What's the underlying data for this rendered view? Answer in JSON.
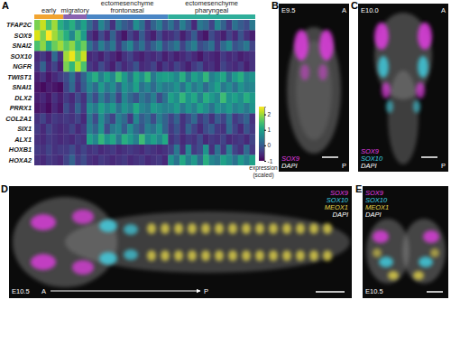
{
  "chart_data": {
    "type": "heatmap",
    "panel": "A",
    "rows": [
      "TFAP2C",
      "SOX9",
      "SNAI2",
      "SOX10",
      "NGFR",
      "TWIST1",
      "SNAI1",
      "DLX2",
      "PRRX1",
      "COL2A1",
      "SIX1",
      "ALX1",
      "HOXB1",
      "HOXA2"
    ],
    "groups": [
      {
        "name": "early",
        "color": "#f2a431"
      },
      {
        "name": "migratory",
        "color": "#8a63b0"
      },
      {
        "name": "ectomesenchyme frontonasal",
        "color": "#4a86c5"
      },
      {
        "name": "ectomesenchyme pharyngeal",
        "color": "#2fae9a"
      }
    ],
    "values": [
      [
        [
          1.8,
          2.2,
          1.5,
          2.0,
          1.2
        ],
        [
          0.8,
          1.2,
          0.5,
          1.0
        ],
        [
          0.2,
          -0.3,
          0.6,
          0.1,
          -0.5,
          0.4,
          0.0,
          -0.2,
          0.7,
          0.3,
          -0.4,
          0.1,
          0.5,
          -0.1
        ],
        [
          0.3,
          -0.2,
          0.5,
          0.0,
          -0.6,
          0.4,
          0.2,
          -0.3,
          0.6,
          0.1,
          -0.4,
          0.3,
          0.0,
          -0.2,
          0.4
        ]
      ],
      [
        [
          2.3,
          1.8,
          2.5,
          2.0,
          1.6
        ],
        [
          1.2,
          0.6,
          1.5,
          0.9
        ],
        [
          -0.4,
          -0.7,
          -0.2,
          -0.6,
          0.1,
          -0.5,
          -0.8,
          -0.3,
          -0.6,
          0.0,
          -0.5,
          -0.7,
          -0.2,
          -0.6
        ],
        [
          -0.5,
          -0.3,
          -0.7,
          -0.4,
          0.0,
          -0.6,
          -0.8,
          -0.2,
          -0.5,
          -0.7,
          -0.3,
          -0.6,
          -0.1,
          -0.5,
          -0.7
        ]
      ],
      [
        [
          1.5,
          1.9,
          1.2,
          1.7,
          2.0
        ],
        [
          1.6,
          1.9,
          1.3,
          1.7
        ],
        [
          0.3,
          -0.2,
          0.5,
          0.0,
          0.4,
          -0.4,
          0.2,
          0.6,
          -0.1,
          0.3,
          -0.3,
          0.1,
          0.5,
          -0.2
        ],
        [
          0.1,
          0.4,
          -0.3,
          0.2,
          0.5,
          -0.2,
          0.0,
          0.3,
          -0.4,
          0.2,
          0.6,
          -0.1,
          0.1,
          0.4,
          -0.3
        ]
      ],
      [
        [
          -0.6,
          -0.4,
          -0.7,
          0.2,
          -0.5
        ],
        [
          2.0,
          2.4,
          1.7,
          2.2
        ],
        [
          -0.6,
          -0.5,
          -0.7,
          -0.4,
          -0.6,
          -0.8,
          -0.5,
          -0.3,
          -0.6,
          -0.7,
          -0.5,
          -0.6,
          -0.4,
          -0.7
        ],
        [
          -0.5,
          -0.7,
          -0.6,
          -0.4,
          -0.6,
          -0.8,
          -0.5,
          -0.6,
          -0.7,
          -0.4,
          -0.6,
          -0.5,
          -0.7,
          -0.6,
          -0.5
        ]
      ],
      [
        [
          -0.5,
          0.1,
          -0.6,
          -0.3,
          -0.7
        ],
        [
          1.8,
          1.3,
          2.1,
          1.5
        ],
        [
          -0.4,
          -0.6,
          -0.2,
          -0.5,
          -0.7,
          -0.3,
          -0.6,
          -0.4,
          -0.1,
          -0.6,
          -0.5,
          -0.3,
          -0.7,
          -0.4
        ],
        [
          -0.6,
          -0.3,
          -0.5,
          -0.7,
          -0.4,
          -0.2,
          -0.6,
          -0.5,
          -0.7,
          -0.3,
          -0.5,
          -0.6,
          -0.4,
          -0.7,
          -0.5
        ]
      ],
      [
        [
          -0.7,
          -0.5,
          -0.8,
          -0.6,
          -0.4
        ],
        [
          -0.2,
          0.3,
          -0.4,
          0.1
        ],
        [
          0.8,
          1.2,
          0.5,
          1.0,
          0.6,
          1.4,
          0.9,
          0.3,
          1.1,
          0.7,
          1.3,
          0.4,
          0.9,
          1.0
        ],
        [
          0.9,
          0.6,
          1.2,
          0.4,
          1.0,
          0.7,
          1.3,
          0.5,
          0.8,
          1.1,
          0.3,
          0.9,
          1.2,
          0.6,
          0.8
        ]
      ],
      [
        [
          -0.8,
          -0.9,
          -0.7,
          -0.8,
          -0.9
        ],
        [
          -0.3,
          0.2,
          -0.5,
          0.0
        ],
        [
          0.6,
          0.2,
          0.9,
          0.4,
          0.7,
          0.1,
          0.8,
          0.5,
          1.0,
          0.3,
          0.6,
          0.2,
          0.7,
          0.4
        ],
        [
          0.5,
          0.8,
          0.3,
          0.9,
          0.4,
          0.7,
          0.2,
          0.6,
          1.0,
          0.4,
          0.7,
          0.3,
          0.8,
          0.5,
          0.6
        ]
      ],
      [
        [
          -0.7,
          -0.6,
          -0.8,
          -0.5,
          -0.7
        ],
        [
          -0.4,
          -0.6,
          -0.2,
          -0.5
        ],
        [
          0.3,
          -0.2,
          0.5,
          0.0,
          0.4,
          -0.3,
          0.6,
          0.2,
          -0.1,
          0.4,
          0.1,
          0.5,
          -0.2,
          0.3
        ],
        [
          1.0,
          0.7,
          1.3,
          0.8,
          1.1,
          0.5,
          1.2,
          0.9,
          0.6,
          1.4,
          0.8,
          1.0,
          0.7,
          1.2,
          0.9
        ]
      ],
      [
        [
          -0.8,
          -0.7,
          -0.9,
          -0.6,
          -0.8
        ],
        [
          -0.2,
          -0.5,
          0.1,
          -0.4
        ],
        [
          0.7,
          0.4,
          1.0,
          0.6,
          0.9,
          0.3,
          0.8,
          0.5,
          1.1,
          0.6,
          0.4,
          0.9,
          0.7,
          0.5
        ],
        [
          0.6,
          0.9,
          0.4,
          0.8,
          0.5,
          1.0,
          0.7,
          0.3,
          0.8,
          0.6,
          0.9,
          0.5,
          0.7,
          0.4,
          0.8
        ]
      ],
      [
        [
          -0.5,
          -0.3,
          -0.6,
          -0.4,
          -0.5
        ],
        [
          -0.4,
          -0.5,
          -0.3,
          -0.6
        ],
        [
          0.4,
          -0.2,
          0.7,
          0.1,
          -0.3,
          0.5,
          0.2,
          -0.4,
          0.6,
          0.0,
          0.3,
          -0.2,
          0.5,
          0.1
        ],
        [
          -0.3,
          0.1,
          -0.5,
          -0.2,
          0.2,
          -0.4,
          -0.1,
          -0.5,
          0.0,
          -0.3,
          0.3,
          -0.4,
          -0.2,
          0.1,
          -0.5
        ]
      ],
      [
        [
          -0.4,
          -0.6,
          -0.3,
          -0.5,
          -0.6
        ],
        [
          -0.5,
          -0.3,
          -0.6,
          -0.4
        ],
        [
          0.5,
          0.1,
          0.8,
          -0.2,
          0.4,
          0.6,
          0.0,
          0.7,
          0.2,
          -0.1,
          0.5,
          0.3,
          0.8,
          0.1
        ],
        [
          -0.4,
          -0.1,
          -0.5,
          0.1,
          -0.3,
          -0.6,
          -0.2,
          0.0,
          -0.4,
          -0.5,
          0.2,
          -0.3,
          -0.6,
          -0.1,
          -0.4
        ]
      ],
      [
        [
          -0.5,
          -0.6,
          -0.4,
          -0.5,
          -0.6
        ],
        [
          -0.5,
          -0.6,
          -0.4,
          -0.5
        ],
        [
          1.0,
          0.6,
          1.3,
          0.8,
          1.1,
          0.4,
          1.2,
          0.9,
          0.5,
          1.4,
          0.7,
          1.0,
          0.6,
          1.1
        ],
        [
          -0.5,
          -0.3,
          -0.6,
          -0.4,
          -0.5,
          -0.2,
          -0.6,
          -0.4,
          -0.5,
          -0.3,
          -0.6,
          -0.5,
          -0.4,
          -0.6,
          -0.3
        ]
      ],
      [
        [
          -0.4,
          -0.5,
          -0.3,
          -0.5,
          -0.4
        ],
        [
          -0.4,
          -0.2,
          -0.5,
          -0.3
        ],
        [
          -0.5,
          -0.4,
          -0.6,
          -0.5,
          -0.4,
          -0.6,
          -0.5,
          -0.4,
          -0.5,
          -0.6,
          -0.4,
          -0.5,
          -0.6,
          -0.5
        ],
        [
          -0.3,
          0.4,
          -0.5,
          0.6,
          -0.4,
          -0.2,
          0.8,
          -0.5,
          0.3,
          -0.4,
          0.5,
          -0.3,
          -0.5,
          0.2,
          -0.4
        ]
      ],
      [
        [
          -0.5,
          -0.6,
          -0.4,
          -0.5,
          -0.6
        ],
        [
          -0.3,
          0.1,
          -0.4,
          -0.2
        ],
        [
          -0.5,
          -0.6,
          -0.4,
          -0.5,
          -0.6,
          -0.5,
          -0.4,
          -0.6,
          -0.5,
          -0.4,
          -0.6,
          -0.5,
          -0.4,
          -0.6
        ],
        [
          0.8,
          0.3,
          1.1,
          0.5,
          0.9,
          0.2,
          1.2,
          0.6,
          0.4,
          1.0,
          0.7,
          0.3,
          0.9,
          0.5,
          1.0
        ]
      ]
    ],
    "colorbar": {
      "range": [
        -1,
        2.5
      ],
      "ticks": [
        -1,
        0,
        1,
        2
      ],
      "label": "expression (scaled)"
    }
  },
  "images": [
    {
      "panel": "B",
      "stage": "E9.5",
      "anterior": "A",
      "posterior": "P",
      "channels": [
        {
          "name": "SOX9",
          "color": "#e23de2"
        },
        {
          "name": "DAPI",
          "color": "#ffffff"
        }
      ]
    },
    {
      "panel": "C",
      "stage": "E10.0",
      "anterior": "A",
      "posterior": "P",
      "channels": [
        {
          "name": "SOX9",
          "color": "#e23de2"
        },
        {
          "name": "SOX10",
          "color": "#3fd3e6"
        },
        {
          "name": "DAPI",
          "color": "#ffffff"
        }
      ]
    },
    {
      "panel": "D",
      "stage": "E10.5",
      "anterior": "A",
      "posterior": "P",
      "channels": [
        {
          "name": "SOX9",
          "color": "#e23de2"
        },
        {
          "name": "SOX10",
          "color": "#3fd3e6"
        },
        {
          "name": "MEOX1",
          "color": "#e3d44a"
        },
        {
          "name": "DAPI",
          "color": "#ffffff"
        }
      ]
    },
    {
      "panel": "E",
      "stage": "E10.5",
      "channels": [
        {
          "name": "SOX9",
          "color": "#e23de2"
        },
        {
          "name": "SOX10",
          "color": "#3fd3e6"
        },
        {
          "name": "MEOX1",
          "color": "#e3d44a"
        },
        {
          "name": "DAPI",
          "color": "#ffffff"
        }
      ]
    }
  ]
}
